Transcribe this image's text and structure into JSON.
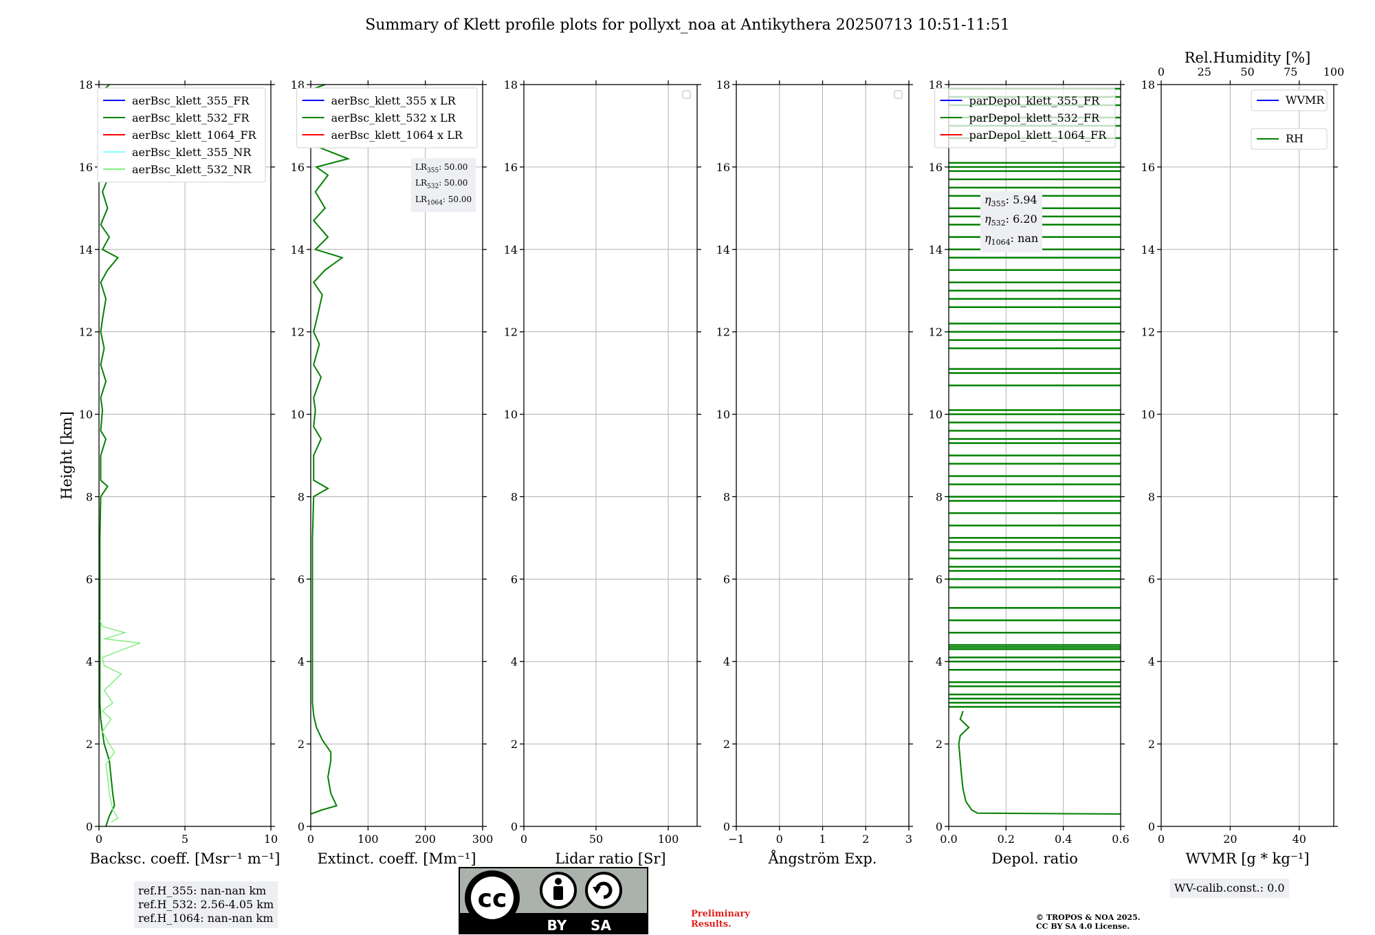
{
  "title": "Summary of Klett profile plots for pollyxt_noa at Antikythera 20250713 10:51-11:51",
  "colors": {
    "c355": "#0000ff",
    "c532": "#008000",
    "c1064": "#ff0000",
    "c355nr": "#80ffff",
    "c532nr": "#80ee80",
    "grid": "#b0b0b0"
  },
  "chart_data": [
    {
      "id": "bsc",
      "type": "line",
      "xlabel": "Backsc. coeff. [Msr⁻¹ m⁻¹]",
      "ylabel": "Height [km]",
      "xlim": [
        0,
        10
      ],
      "ylim": [
        0,
        18
      ],
      "xticks": [
        "0",
        "5",
        "10"
      ],
      "yticks": [
        "0",
        "2",
        "4",
        "6",
        "8",
        "10",
        "12",
        "14",
        "16",
        "18"
      ],
      "grid": true,
      "legend_loc": "top-right",
      "series": [
        {
          "name": "aerBsc_klett_355_FR",
          "color": "#0000ff",
          "points": []
        },
        {
          "name": "aerBsc_klett_532_FR",
          "color": "#008000",
          "points": [
            [
              0.4,
              0.0
            ],
            [
              0.6,
              0.25
            ],
            [
              0.9,
              0.5
            ],
            [
              0.8,
              0.8
            ],
            [
              0.7,
              1.2
            ],
            [
              0.6,
              1.6
            ],
            [
              0.3,
              2.0
            ],
            [
              0.2,
              2.3
            ],
            [
              0.1,
              2.6
            ],
            [
              0.05,
              3.0
            ],
            [
              0.05,
              4.0
            ],
            [
              0.05,
              5.0
            ],
            [
              0.05,
              6.0
            ],
            [
              0.05,
              7.0
            ],
            [
              0.1,
              8.0
            ],
            [
              0.5,
              8.25
            ],
            [
              0.1,
              8.4
            ],
            [
              0.1,
              9.0
            ],
            [
              0.4,
              9.4
            ],
            [
              0.1,
              9.6
            ],
            [
              0.2,
              10.1
            ],
            [
              0.1,
              10.4
            ],
            [
              0.4,
              10.8
            ],
            [
              0.1,
              11.2
            ],
            [
              0.3,
              11.6
            ],
            [
              0.1,
              12.0
            ],
            [
              0.2,
              12.3
            ],
            [
              0.4,
              12.8
            ],
            [
              0.1,
              13.2
            ],
            [
              0.5,
              13.5
            ],
            [
              1.1,
              13.8
            ],
            [
              0.2,
              14.0
            ],
            [
              0.6,
              14.3
            ],
            [
              0.1,
              14.6
            ],
            [
              0.5,
              15.0
            ],
            [
              0.2,
              15.4
            ],
            [
              0.6,
              15.8
            ],
            [
              0.2,
              16.2
            ],
            [
              0.8,
              16.6
            ],
            [
              0.2,
              17.0
            ],
            [
              0.6,
              17.4
            ],
            [
              0.1,
              17.8
            ],
            [
              0.6,
              18.0
            ]
          ]
        },
        {
          "name": "aerBsc_klett_1064_FR",
          "color": "#ff0000",
          "points": []
        },
        {
          "name": "aerBsc_klett_355_NR",
          "color": "#80ffff",
          "points": []
        },
        {
          "name": "aerBsc_klett_532_NR",
          "color": "#80ee80",
          "points": [
            [
              0.7,
              0.1
            ],
            [
              1.1,
              0.2
            ],
            [
              0.8,
              0.4
            ],
            [
              0.6,
              0.8
            ],
            [
              0.5,
              1.2
            ],
            [
              0.4,
              1.5
            ],
            [
              0.9,
              1.8
            ],
            [
              0.6,
              2.0
            ],
            [
              0.2,
              2.3
            ],
            [
              0.7,
              2.6
            ],
            [
              0.2,
              2.8
            ],
            [
              0.8,
              3.0
            ],
            [
              0.3,
              3.3
            ],
            [
              1.3,
              3.7
            ],
            [
              0.3,
              3.9
            ],
            [
              0.2,
              4.1
            ],
            [
              2.4,
              4.45
            ],
            [
              0.3,
              4.55
            ],
            [
              1.5,
              4.7
            ],
            [
              0.2,
              4.85
            ],
            [
              0.05,
              5.0
            ]
          ]
        }
      ]
    },
    {
      "id": "ext",
      "type": "line",
      "xlabel": "Extinct. coeff. [Mm⁻¹]",
      "xlim": [
        0,
        300
      ],
      "ylim": [
        0,
        18
      ],
      "xticks": [
        "0",
        "100",
        "200",
        "300"
      ],
      "yticks": [
        "0",
        "2",
        "4",
        "6",
        "8",
        "10",
        "12",
        "14",
        "16",
        "18"
      ],
      "grid": true,
      "legend_loc": "top-right",
      "series": [
        {
          "name": "aerBsc_klett_355 x LR",
          "color": "#0000ff",
          "points": []
        },
        {
          "name": "aerBsc_klett_532 x LR",
          "color": "#008000",
          "points": [
            [
              0,
              0.3
            ],
            [
              20,
              0.4
            ],
            [
              45,
              0.5
            ],
            [
              35,
              0.8
            ],
            [
              30,
              1.2
            ],
            [
              35,
              1.6
            ],
            [
              35,
              1.8
            ],
            [
              20,
              2.1
            ],
            [
              10,
              2.4
            ],
            [
              5,
              2.7
            ],
            [
              3,
              3.0
            ],
            [
              3,
              5.0
            ],
            [
              3,
              7.0
            ],
            [
              5,
              8.0
            ],
            [
              30,
              8.2
            ],
            [
              5,
              8.4
            ],
            [
              5,
              9.0
            ],
            [
              18,
              9.4
            ],
            [
              5,
              9.7
            ],
            [
              8,
              10.1
            ],
            [
              5,
              10.4
            ],
            [
              18,
              10.9
            ],
            [
              5,
              11.2
            ],
            [
              15,
              11.7
            ],
            [
              5,
              12.0
            ],
            [
              12,
              12.4
            ],
            [
              20,
              12.9
            ],
            [
              5,
              13.2
            ],
            [
              25,
              13.5
            ],
            [
              55,
              13.8
            ],
            [
              8,
              14.0
            ],
            [
              30,
              14.3
            ],
            [
              5,
              14.7
            ],
            [
              25,
              15.0
            ],
            [
              8,
              15.4
            ],
            [
              30,
              15.8
            ],
            [
              10,
              16.0
            ],
            [
              65,
              16.2
            ],
            [
              10,
              16.5
            ],
            [
              40,
              16.8
            ],
            [
              10,
              17.2
            ],
            [
              30,
              17.6
            ],
            [
              5,
              17.9
            ],
            [
              25,
              18.0
            ]
          ]
        },
        {
          "name": "aerBsc_klett_1064 x LR",
          "color": "#ff0000",
          "points": []
        }
      ]
    },
    {
      "id": "lr",
      "type": "line",
      "xlabel": "Lidar ratio [Sr]",
      "xlim": [
        0,
        120
      ],
      "ylim": [
        0,
        18
      ],
      "xticks": [
        "0",
        "50",
        "100"
      ],
      "yticks": [
        "0",
        "2",
        "4",
        "6",
        "8",
        "10",
        "12",
        "14",
        "16",
        "18"
      ],
      "grid": true,
      "legend_loc": "top-right",
      "series": []
    },
    {
      "id": "ae",
      "type": "line",
      "xlabel": "Ångström Exp.",
      "xlim": [
        -1,
        3
      ],
      "ylim": [
        0,
        18
      ],
      "xticks": [
        "−1",
        "0",
        "1",
        "2",
        "3"
      ],
      "yticks": [
        "0",
        "2",
        "4",
        "6",
        "8",
        "10",
        "12",
        "14",
        "16",
        "18"
      ],
      "grid": true,
      "legend_loc": "top-right",
      "series": []
    },
    {
      "id": "dep",
      "type": "line",
      "xlabel": "Depol. ratio",
      "xlim": [
        0,
        0.6
      ],
      "ylim": [
        0,
        18
      ],
      "xticks": [
        "0.0",
        "0.2",
        "0.4",
        "0.6"
      ],
      "yticks": [
        "0",
        "2",
        "4",
        "6",
        "8",
        "10",
        "12",
        "14",
        "16",
        "18"
      ],
      "grid": true,
      "legend_loc": "top-right",
      "series": [
        {
          "name": "parDepol_klett_355_FR",
          "color": "#0000ff",
          "points": []
        },
        {
          "name": "parDepol_klett_532_FR",
          "color": "#008000",
          "points": [
            [
              0.6,
              0.3
            ],
            [
              0.1,
              0.32
            ],
            [
              0.08,
              0.4
            ],
            [
              0.06,
              0.6
            ],
            [
              0.05,
              0.9
            ],
            [
              0.045,
              1.2
            ],
            [
              0.04,
              1.6
            ],
            [
              0.035,
              2.0
            ],
            [
              0.04,
              2.2
            ],
            [
              0.07,
              2.4
            ],
            [
              0.04,
              2.6
            ],
            [
              0.05,
              2.8
            ]
          ]
        },
        {
          "name": "parDepol_klett_1064_FR",
          "color": "#ff0000",
          "points": []
        }
      ],
      "spikes_532": [
        2.9,
        3.0,
        3.1,
        3.2,
        3.4,
        3.5,
        3.8,
        4.0,
        4.1,
        4.3,
        4.35,
        4.4,
        4.7,
        5.0,
        5.3,
        5.8,
        6.0,
        6.2,
        6.3,
        6.5,
        6.7,
        6.9,
        7.0,
        7.3,
        7.6,
        7.9,
        8.0,
        8.3,
        8.5,
        8.8,
        9.0,
        9.3,
        9.4,
        9.6,
        9.8,
        10.0,
        10.1,
        10.7,
        11.0,
        11.1,
        11.6,
        11.8,
        12.0,
        12.2,
        12.6,
        12.8,
        13.0,
        13.2,
        13.5,
        13.8,
        14.0,
        14.3,
        14.6,
        14.8,
        15.0,
        15.3,
        15.5,
        15.7,
        15.9,
        16.0,
        16.1,
        16.7,
        17.0,
        17.2,
        17.5,
        17.7,
        17.9
      ]
    },
    {
      "id": "wv",
      "type": "line",
      "xlabel": "WVMR [g * kg⁻¹]",
      "top_xlabel": "Rel.Humidity [%]",
      "xlim": [
        0,
        50
      ],
      "top_xlim": [
        0,
        100
      ],
      "ylim": [
        0,
        18
      ],
      "xticks": [
        "0",
        "20",
        "40"
      ],
      "top_xticks": [
        "0",
        "25",
        "50",
        "75",
        "100"
      ],
      "yticks": [
        "0",
        "2",
        "4",
        "6",
        "8",
        "10",
        "12",
        "14",
        "16",
        "18"
      ],
      "grid": true,
      "legend_loc": "top-right",
      "series": [
        {
          "name": "WVMR",
          "color": "#0000ff",
          "points": []
        },
        {
          "name": "RH",
          "color": "#008000",
          "points": []
        }
      ]
    }
  ],
  "annotations": {
    "lr_box": [
      {
        "sym": "LR",
        "sub": "355",
        "val": ": 50.00"
      },
      {
        "sym": "LR",
        "sub": "532",
        "val": ": 50.00"
      },
      {
        "sym": "LR",
        "sub": "1064",
        "val": ": 50.00"
      }
    ],
    "eta_box": [
      {
        "sym": "η",
        "sub": "355",
        "val": ": 5.94"
      },
      {
        "sym": "η",
        "sub": "532",
        "val": ": 6.20"
      },
      {
        "sym": "η",
        "sub": "1064",
        "val": ": nan"
      }
    ],
    "ref_h": [
      "ref.H_355: nan-nan km",
      "ref.H_532: 2.56-4.05 km",
      "ref.H_1064: nan-nan km"
    ],
    "wv_calib": "WV-calib.const.: 0.0",
    "preliminary": [
      "Preliminary",
      "Results."
    ],
    "copyright": [
      "© TROPOS & NOA 2025.",
      "CC BY SA 4.0 License."
    ],
    "license_badge": {
      "by": "BY",
      "sa": "SA",
      "cc": "cc"
    }
  }
}
